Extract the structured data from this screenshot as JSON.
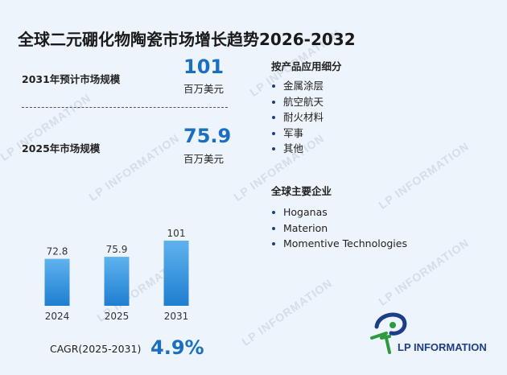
{
  "title": "全球二元硼化物陶瓷市场增长趋势2026-2032",
  "stats": {
    "forecast_label": "2031年预计市场规模",
    "forecast_value": "101",
    "forecast_unit": "百万美元",
    "current_label": "2025年市场规模",
    "current_value": "75.9",
    "current_unit": "百万美元"
  },
  "applications": {
    "title": "按产品应用细分",
    "items": [
      "金属涂层",
      "航空航天",
      "耐火材料",
      "军事",
      "其他"
    ]
  },
  "companies": {
    "title": "全球主要企业",
    "items": [
      "Hoganas",
      "Materion",
      "Momentive Technologies"
    ]
  },
  "cagr": {
    "label": "CAGR(2025-2031)",
    "value": "4.9%"
  },
  "logo": {
    "text": "LP INFORMATION"
  },
  "watermark": "LP INFORMATION",
  "colors": {
    "accent": "#1a6fc0",
    "bar_top": "#5fb3ee",
    "bar_bottom": "#1f7ed0",
    "brand_navy": "#1b3e86",
    "brand_green": "#2e9a3e"
  },
  "chart_data": {
    "type": "bar",
    "categories": [
      "2024",
      "2025",
      "2031"
    ],
    "values": [
      72.8,
      75.9,
      101
    ],
    "value_labels": [
      "72.8",
      "75.9",
      "101"
    ],
    "title": "",
    "xlabel": "",
    "ylabel": "",
    "grid": false,
    "legend": "none"
  }
}
